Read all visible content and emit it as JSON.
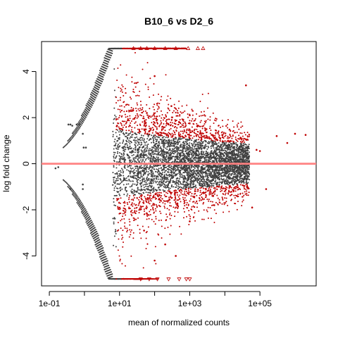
{
  "chart_data": {
    "type": "scatter",
    "title": "B10_6 vs D2_6",
    "xlabel": "mean of normalized counts",
    "ylabel": "log fold change",
    "x_scale": "log10",
    "xlim": [
      0.06,
      4000000
    ],
    "ylim": [
      -5.3,
      5.3
    ],
    "x_ticks": [
      0.1,
      10,
      1000,
      100000
    ],
    "x_tick_labels": [
      "1e-01",
      "1e+01",
      "1e+03",
      "1e+05"
    ],
    "y_ticks": [
      -4,
      -2,
      0,
      2,
      4
    ],
    "y_tick_labels": [
      "-4",
      "-2",
      "0",
      "2",
      "4"
    ],
    "reference_line": {
      "y": 0,
      "color": "#ff8080"
    },
    "legend": "none",
    "grid": false,
    "colors": {
      "not_significant": "#404040",
      "significant": "#bf0000"
    },
    "series": [
      {
        "color": "#404040",
        "marker": "dot",
        "points": [
          [
            0.15,
            -0.2
          ],
          [
            0.18,
            -0.15
          ],
          [
            0.35,
            1.7
          ],
          [
            0.4,
            1.7
          ],
          [
            0.45,
            1.65
          ],
          [
            0.6,
            1.7
          ],
          [
            0.7,
            1.7
          ],
          [
            0.9,
            1.3
          ],
          [
            0.9,
            -1.1
          ],
          [
            0.95,
            0.7
          ],
          [
            1.1,
            0.7
          ],
          [
            0.4,
            -1.1
          ],
          [
            0.9,
            -0.9
          ],
          [
            20,
            0.5
          ],
          [
            50,
            -0.3
          ],
          [
            200,
            0.2
          ],
          [
            800,
            -0.1
          ],
          [
            2000,
            0.15
          ],
          [
            6000,
            0.05
          ],
          [
            15000,
            -0.05
          ],
          [
            30000,
            0.2
          ],
          [
            35000,
            -0.2
          ]
        ]
      },
      {
        "color": "#bf0000",
        "marker": "dot",
        "points": [
          [
            30,
            3.5
          ],
          [
            60,
            2.2
          ],
          [
            100,
            3.8
          ],
          [
            300,
            2.5
          ],
          [
            500,
            1.8
          ],
          [
            1000,
            2.1
          ],
          [
            3000,
            1.5
          ],
          [
            40000,
            3.4
          ],
          [
            80000,
            0.6
          ],
          [
            100000,
            0.55
          ],
          [
            300000,
            1.2
          ],
          [
            600000,
            0.9
          ],
          [
            1000000,
            1.3
          ],
          [
            2000000,
            1.25
          ],
          [
            5000,
            -1.8
          ],
          [
            1000,
            -2.5
          ],
          [
            200,
            -3.5
          ],
          [
            100,
            -4.2
          ],
          [
            400,
            -4.0
          ],
          [
            60000,
            -1.9
          ],
          [
            150000,
            -1.1
          ],
          [
            50,
            -2.9
          ]
        ]
      },
      {
        "color": "#bf0000",
        "marker": "triangle-up",
        "points": [
          [
            25,
            5
          ],
          [
            40,
            5
          ],
          [
            60,
            5
          ],
          [
            100,
            5
          ],
          [
            200,
            5
          ],
          [
            400,
            5
          ],
          [
            900,
            5
          ],
          [
            1700,
            5
          ],
          [
            2400,
            5
          ]
        ]
      },
      {
        "color": "#bf0000",
        "marker": "triangle-down",
        "points": [
          [
            40,
            -5
          ],
          [
            70,
            -5
          ],
          [
            120,
            -5
          ],
          [
            250,
            -5
          ],
          [
            500,
            -5
          ],
          [
            800,
            -5
          ],
          [
            1000,
            -5
          ]
        ]
      }
    ]
  }
}
